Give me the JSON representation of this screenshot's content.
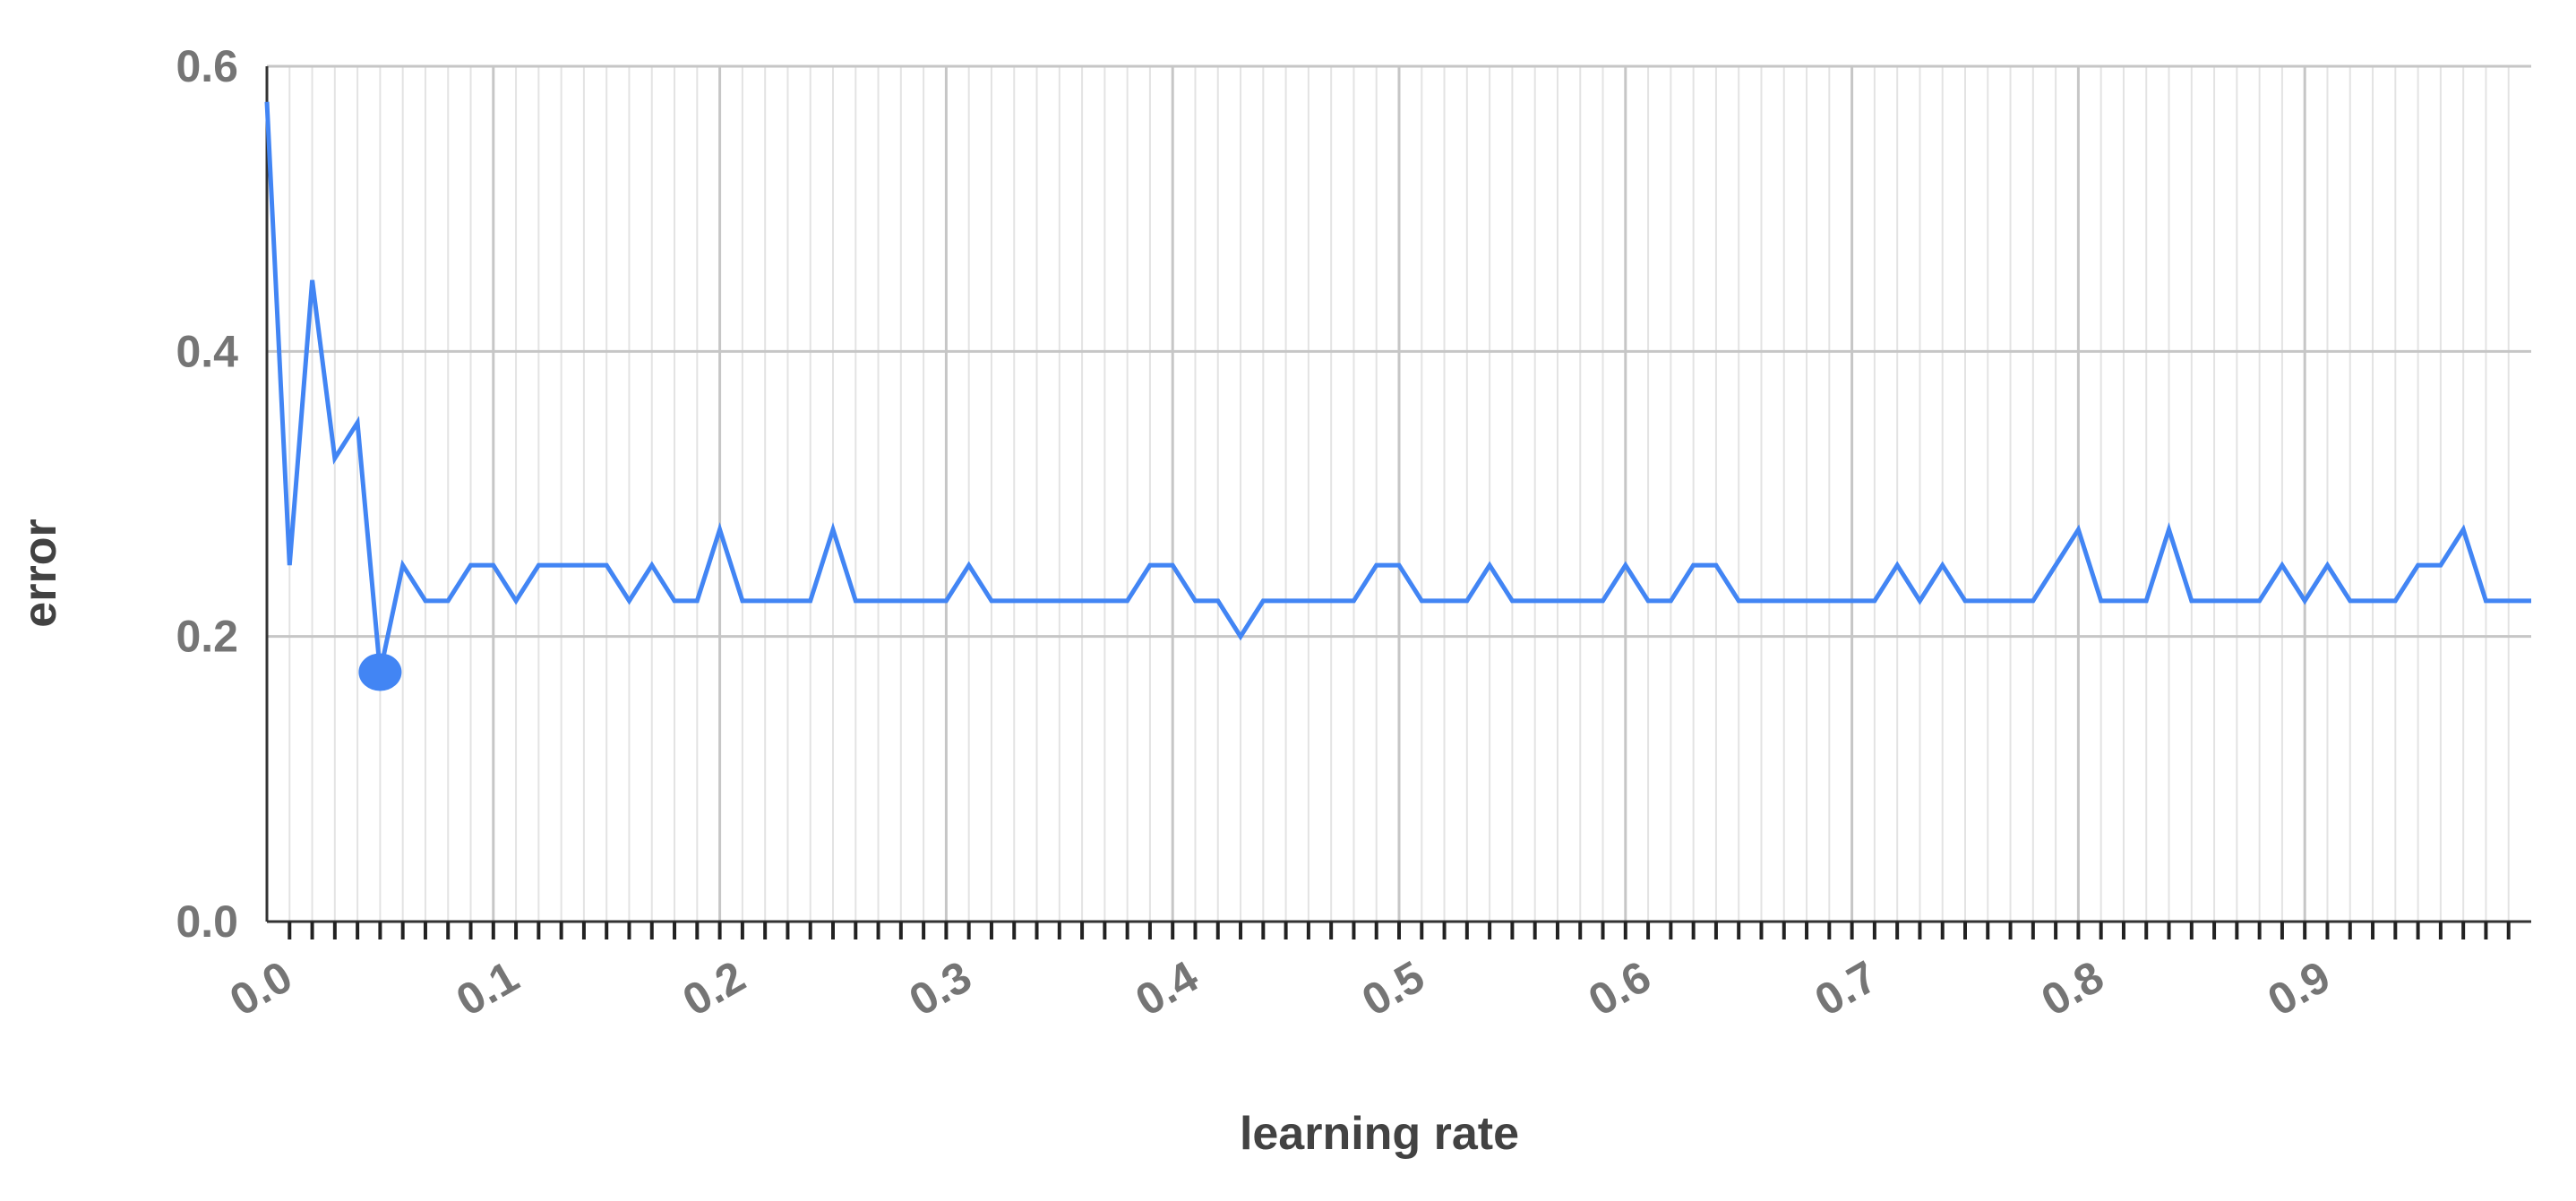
{
  "chart_data": {
    "type": "line",
    "title": "",
    "xlabel": "learning rate",
    "ylabel": "error",
    "xlim": [
      0,
      1
    ],
    "ylim": [
      0,
      0.6
    ],
    "yticks": [
      0.0,
      0.2,
      0.4,
      0.6
    ],
    "ytick_labels": [
      "0.0",
      "0.2",
      "0.4",
      "0.6"
    ],
    "xticks": [
      0.0,
      0.1,
      0.2,
      0.3,
      0.4,
      0.5,
      0.6,
      0.7,
      0.8,
      0.9
    ],
    "xtick_labels": [
      "0.0",
      "0.1",
      "0.2",
      "0.3",
      "0.4",
      "0.5",
      "0.6",
      "0.7",
      "0.8",
      "0.9"
    ],
    "grid": true,
    "legend": "none",
    "line_color": "#4285f4",
    "series": [
      {
        "x": [
          0.0,
          0.01,
          0.02,
          0.03,
          0.04,
          0.05,
          0.06,
          0.07,
          0.08,
          0.09,
          0.1,
          0.11,
          0.12,
          0.13,
          0.14,
          0.15,
          0.16,
          0.17,
          0.18,
          0.19,
          0.2,
          0.21,
          0.22,
          0.23,
          0.24,
          0.25,
          0.26,
          0.27,
          0.28,
          0.29,
          0.3,
          0.31,
          0.32,
          0.33,
          0.34,
          0.35,
          0.36,
          0.37,
          0.38,
          0.39,
          0.4,
          0.41,
          0.42,
          0.43,
          0.44,
          0.45,
          0.46,
          0.47,
          0.48,
          0.49,
          0.5,
          0.51,
          0.52,
          0.53,
          0.54,
          0.55,
          0.56,
          0.57,
          0.58,
          0.59,
          0.6,
          0.61,
          0.62,
          0.63,
          0.64,
          0.65,
          0.66,
          0.67,
          0.68,
          0.69,
          0.7,
          0.71,
          0.72,
          0.73,
          0.74,
          0.75,
          0.76,
          0.77,
          0.78,
          0.79,
          0.8,
          0.81,
          0.82,
          0.83,
          0.84,
          0.85,
          0.86,
          0.87,
          0.88,
          0.89,
          0.9,
          0.91,
          0.92,
          0.93,
          0.94,
          0.95,
          0.96,
          0.97,
          0.98,
          0.99,
          1.0
        ],
        "values": [
          0.575,
          0.25,
          0.45,
          0.325,
          0.35,
          0.175,
          0.25,
          0.225,
          0.225,
          0.25,
          0.25,
          0.225,
          0.25,
          0.25,
          0.25,
          0.25,
          0.225,
          0.25,
          0.225,
          0.225,
          0.275,
          0.225,
          0.225,
          0.225,
          0.225,
          0.275,
          0.225,
          0.225,
          0.225,
          0.225,
          0.225,
          0.25,
          0.225,
          0.225,
          0.225,
          0.225,
          0.225,
          0.225,
          0.225,
          0.25,
          0.25,
          0.225,
          0.225,
          0.2,
          0.225,
          0.225,
          0.225,
          0.225,
          0.225,
          0.25,
          0.25,
          0.225,
          0.225,
          0.225,
          0.25,
          0.225,
          0.225,
          0.225,
          0.225,
          0.225,
          0.25,
          0.225,
          0.225,
          0.25,
          0.25,
          0.225,
          0.225,
          0.225,
          0.225,
          0.225,
          0.225,
          0.225,
          0.25,
          0.225,
          0.25,
          0.225,
          0.225,
          0.225,
          0.225,
          0.25,
          0.275,
          0.225,
          0.225,
          0.225,
          0.275,
          0.225,
          0.225,
          0.225,
          0.225,
          0.25,
          0.225,
          0.25,
          0.225,
          0.225,
          0.225,
          0.25,
          0.25,
          0.275,
          0.225,
          0.225,
          0.225
        ]
      }
    ],
    "highlight_point": {
      "x": 0.05,
      "y": 0.175
    }
  }
}
